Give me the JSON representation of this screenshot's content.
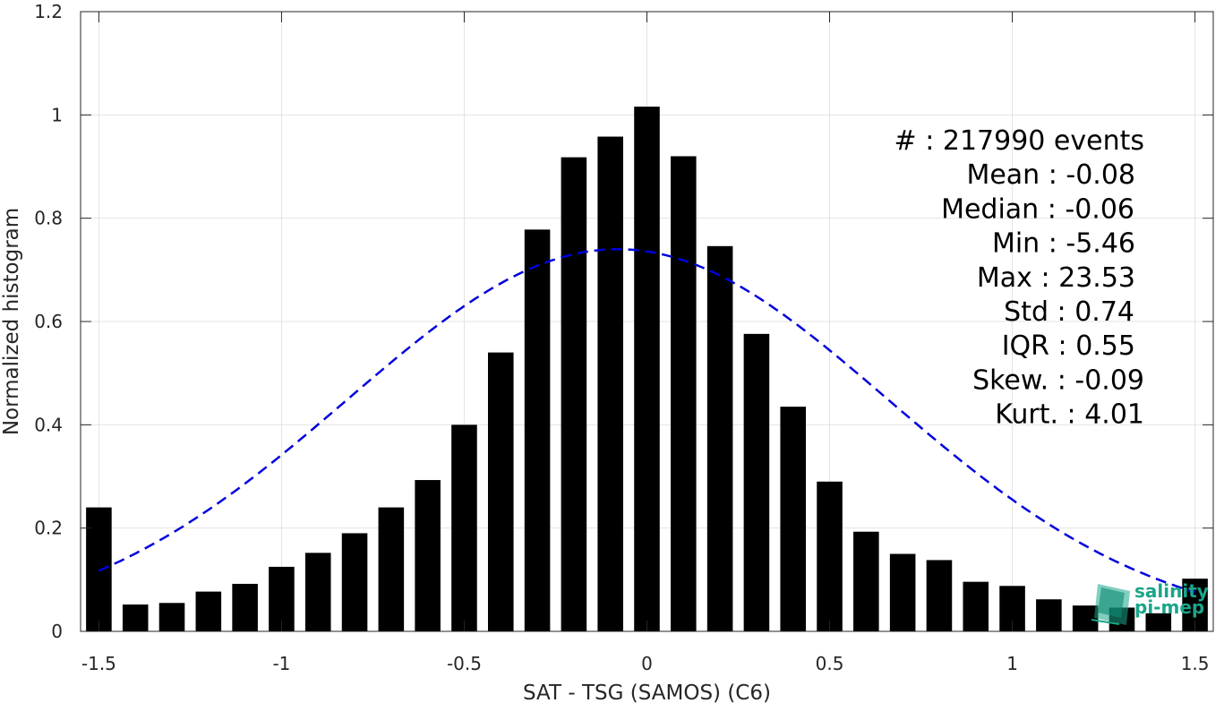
{
  "chart_data": {
    "type": "bar",
    "xlabel": "SAT - TSG (SAMOS) (C6)",
    "ylabel": "Normalized histogram",
    "xlim": [
      -1.55,
      1.55
    ],
    "ylim": [
      0,
      1.2
    ],
    "xticks": [
      -1.5,
      -1,
      -0.5,
      0,
      0.5,
      1,
      1.5
    ],
    "xtick_labels": [
      "-1.5",
      "-1",
      "-0.5",
      "0",
      "0.5",
      "1",
      "1.5"
    ],
    "yticks": [
      0,
      0.2,
      0.4,
      0.6,
      0.8,
      1,
      1.2
    ],
    "ytick_labels": [
      "0",
      "0.2",
      "0.4",
      "0.6",
      "0.8",
      "1",
      "1.2"
    ],
    "grid": true,
    "bar_color": "#000000",
    "bars": {
      "x": [
        -1.5,
        -1.4,
        -1.3,
        -1.2,
        -1.1,
        -1.0,
        -0.9,
        -0.8,
        -0.7,
        -0.6,
        -0.5,
        -0.4,
        -0.3,
        -0.2,
        -0.1,
        0.0,
        0.1,
        0.2,
        0.3,
        0.4,
        0.5,
        0.6,
        0.7,
        0.8,
        0.9,
        1.0,
        1.1,
        1.2,
        1.3,
        1.4,
        1.5
      ],
      "values": [
        0.24,
        0.052,
        0.055,
        0.077,
        0.092,
        0.125,
        0.152,
        0.19,
        0.24,
        0.293,
        0.4,
        0.54,
        0.778,
        0.918,
        0.958,
        1.016,
        0.92,
        0.746,
        0.576,
        0.435,
        0.29,
        0.193,
        0.15,
        0.138,
        0.096,
        0.088,
        0.062,
        0.05,
        0.046,
        0.035,
        0.102
      ]
    },
    "fit_curve": {
      "type": "gaussian",
      "mean": -0.08,
      "std": 0.74,
      "peak": 0.74,
      "color": "#0000dd",
      "style": "dashed"
    },
    "stats_lines": [
      "#   : 217990 events",
      "Mean : -0.08",
      "Median : -0.06",
      "Min : -5.46",
      "Max : 23.53",
      "Std : 0.74",
      "IQR : 0.55",
      "Skew. : -0.09",
      "Kurt. : 4.01"
    ]
  },
  "logo": {
    "line1": "salinity",
    "line2": "pi-mep",
    "color": "#1aa589"
  }
}
